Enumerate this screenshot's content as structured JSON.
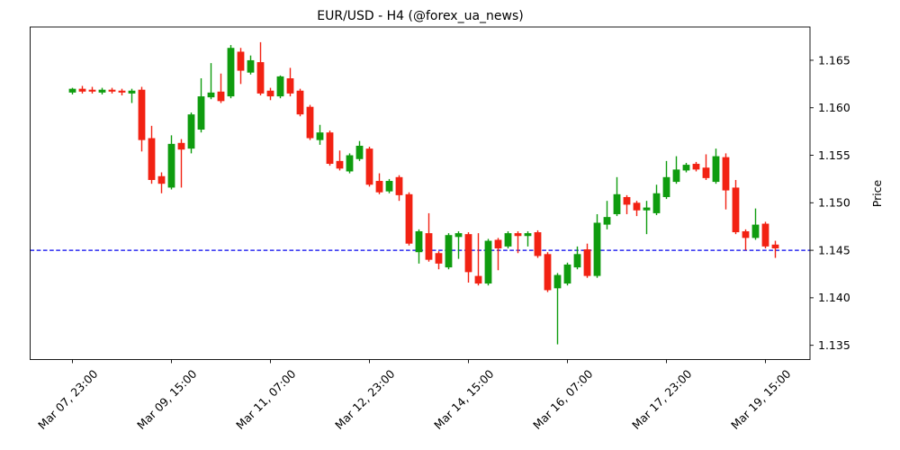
{
  "chart": {
    "background": "#ffffff",
    "colors": {
      "up": "#0f9c0f",
      "down": "#f22213",
      "hline": "#0000ee",
      "axis": "#000000",
      "text": "#000000"
    }
  },
  "chart_data": {
    "type": "candlestick",
    "title": "EUR/USD - H4 (@forex_ua_news)",
    "symbol": "EUR/USD",
    "timeframe": "H4",
    "ylabel": "Price",
    "ylim": [
      1.1335,
      1.1685
    ],
    "y_ticks": [
      1.135,
      1.14,
      1.145,
      1.15,
      1.155,
      1.16,
      1.165
    ],
    "y_tick_labels": [
      "1.135",
      "1.140",
      "1.145",
      "1.150",
      "1.155",
      "1.160",
      "1.165"
    ],
    "hline": 1.145,
    "x_ticks": [
      {
        "index": 0,
        "label": "Mar 07, 23:00"
      },
      {
        "index": 10,
        "label": "Mar 09, 15:00"
      },
      {
        "index": 20,
        "label": "Mar 11, 07:00"
      },
      {
        "index": 30,
        "label": "Mar 12, 23:00"
      },
      {
        "index": 40,
        "label": "Mar 14, 15:00"
      },
      {
        "index": 50,
        "label": "Mar 16, 07:00"
      },
      {
        "index": 60,
        "label": "Mar 17, 23:00"
      },
      {
        "index": 70,
        "label": "Mar 19, 15:00"
      }
    ],
    "columns": [
      "open",
      "high",
      "low",
      "close"
    ],
    "candles": [
      [
        1.1616,
        1.1621,
        1.1614,
        1.162
      ],
      [
        1.162,
        1.1623,
        1.1615,
        1.1617
      ],
      [
        1.1619,
        1.1622,
        1.1615,
        1.1617
      ],
      [
        1.1616,
        1.1621,
        1.1614,
        1.1619
      ],
      [
        1.1619,
        1.1621,
        1.1615,
        1.1617
      ],
      [
        1.1618,
        1.162,
        1.1613,
        1.1616
      ],
      [
        1.1615,
        1.162,
        1.1605,
        1.1618
      ],
      [
        1.1619,
        1.1622,
        1.1554,
        1.1566
      ],
      [
        1.1568,
        1.1581,
        1.152,
        1.1524
      ],
      [
        1.1528,
        1.1532,
        1.151,
        1.152
      ],
      [
        1.1516,
        1.1571,
        1.1514,
        1.1562
      ],
      [
        1.1563,
        1.1567,
        1.1516,
        1.1556
      ],
      [
        1.1557,
        1.1595,
        1.1552,
        1.1593
      ],
      [
        1.1577,
        1.1631,
        1.1574,
        1.1612
      ],
      [
        1.1611,
        1.1647,
        1.1609,
        1.1616
      ],
      [
        1.1617,
        1.1636,
        1.1605,
        1.1607
      ],
      [
        1.1612,
        1.1666,
        1.161,
        1.1663
      ],
      [
        1.1659,
        1.1663,
        1.1625,
        1.1639
      ],
      [
        1.1637,
        1.1655,
        1.1635,
        1.165
      ],
      [
        1.1648,
        1.1669,
        1.1613,
        1.1615
      ],
      [
        1.1618,
        1.1621,
        1.1608,
        1.1612
      ],
      [
        1.1612,
        1.1634,
        1.161,
        1.1633
      ],
      [
        1.1631,
        1.1642,
        1.1612,
        1.1615
      ],
      [
        1.1618,
        1.162,
        1.1591,
        1.1593
      ],
      [
        1.1601,
        1.1603,
        1.1566,
        1.1568
      ],
      [
        1.1566,
        1.1582,
        1.1561,
        1.1574
      ],
      [
        1.1574,
        1.1576,
        1.1539,
        1.1541
      ],
      [
        1.1544,
        1.1555,
        1.1534,
        1.1536
      ],
      [
        1.1533,
        1.1552,
        1.1531,
        1.155
      ],
      [
        1.1546,
        1.1565,
        1.1544,
        1.156
      ],
      [
        1.1557,
        1.1559,
        1.1517,
        1.1519
      ],
      [
        1.1523,
        1.1531,
        1.1509,
        1.1511
      ],
      [
        1.1512,
        1.1525,
        1.151,
        1.1523
      ],
      [
        1.1527,
        1.1529,
        1.1502,
        1.1508
      ],
      [
        1.1509,
        1.1511,
        1.1455,
        1.1457
      ],
      [
        1.1448,
        1.1472,
        1.1436,
        1.147
      ],
      [
        1.1468,
        1.1489,
        1.1438,
        1.144
      ],
      [
        1.1447,
        1.1449,
        1.143,
        1.1436
      ],
      [
        1.1432,
        1.1468,
        1.143,
        1.1466
      ],
      [
        1.1464,
        1.147,
        1.1441,
        1.1468
      ],
      [
        1.1467,
        1.1469,
        1.1416,
        1.1427
      ],
      [
        1.1423,
        1.1468,
        1.1413,
        1.1415
      ],
      [
        1.1415,
        1.1462,
        1.1413,
        1.146
      ],
      [
        1.1461,
        1.1463,
        1.1429,
        1.1452
      ],
      [
        1.1454,
        1.147,
        1.1452,
        1.1468
      ],
      [
        1.1468,
        1.147,
        1.1447,
        1.1465
      ],
      [
        1.1465,
        1.147,
        1.1454,
        1.1468
      ],
      [
        1.1469,
        1.1471,
        1.1442,
        1.1444
      ],
      [
        1.1446,
        1.1448,
        1.1406,
        1.1408
      ],
      [
        1.141,
        1.1426,
        1.1351,
        1.1424
      ],
      [
        1.1415,
        1.1437,
        1.1413,
        1.1435
      ],
      [
        1.1432,
        1.1454,
        1.143,
        1.1446
      ],
      [
        1.1451,
        1.1457,
        1.1421,
        1.1423
      ],
      [
        1.1423,
        1.1488,
        1.1421,
        1.1479
      ],
      [
        1.1477,
        1.1502,
        1.1472,
        1.1485
      ],
      [
        1.1488,
        1.1527,
        1.1486,
        1.1509
      ],
      [
        1.1506,
        1.1508,
        1.1488,
        1.1498
      ],
      [
        1.15,
        1.1502,
        1.1486,
        1.1492
      ],
      [
        1.1492,
        1.1502,
        1.1467,
        1.1495
      ],
      [
        1.1489,
        1.1519,
        1.1487,
        1.151
      ],
      [
        1.1506,
        1.1544,
        1.1504,
        1.1527
      ],
      [
        1.1522,
        1.1549,
        1.152,
        1.1535
      ],
      [
        1.1534,
        1.1542,
        1.1532,
        1.154
      ],
      [
        1.1541,
        1.1543,
        1.1533,
        1.1535
      ],
      [
        1.1537,
        1.1551,
        1.1524,
        1.1526
      ],
      [
        1.1522,
        1.1557,
        1.152,
        1.1549
      ],
      [
        1.1548,
        1.1552,
        1.1493,
        1.1513
      ],
      [
        1.1516,
        1.1524,
        1.1467,
        1.1469
      ],
      [
        1.147,
        1.1472,
        1.145,
        1.1463
      ],
      [
        1.1463,
        1.1494,
        1.1461,
        1.1477
      ],
      [
        1.1478,
        1.148,
        1.1452,
        1.1454
      ],
      [
        1.1456,
        1.146,
        1.1442,
        1.1452
      ]
    ]
  }
}
